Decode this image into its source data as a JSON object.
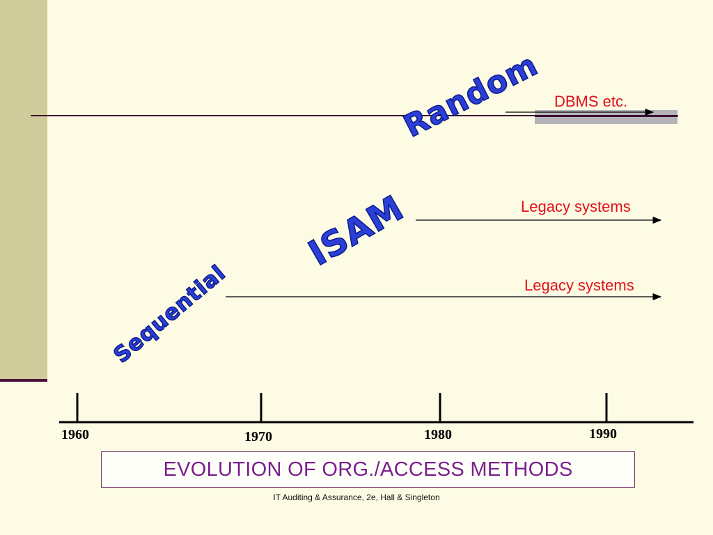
{
  "methods": [
    {
      "name": "Random",
      "successor_label": "DBMS etc."
    },
    {
      "name": "ISAM",
      "successor_label": "Legacy systems"
    },
    {
      "name": "Sequential",
      "successor_label": "Legacy systems"
    }
  ],
  "timeline": {
    "years": [
      "1960",
      "1970",
      "1980",
      "1990"
    ]
  },
  "title": "EVOLUTION OF ORG./ACCESS METHODS",
  "footer": "IT Auditing & Assurance, 2e, Hall & Singleton",
  "colors": {
    "method_text": "#2b3fd6",
    "label_text": "#e0101a",
    "title_text": "#7b1f8f",
    "side_band": "#cfcb9b",
    "background": "#fdfbe4"
  }
}
